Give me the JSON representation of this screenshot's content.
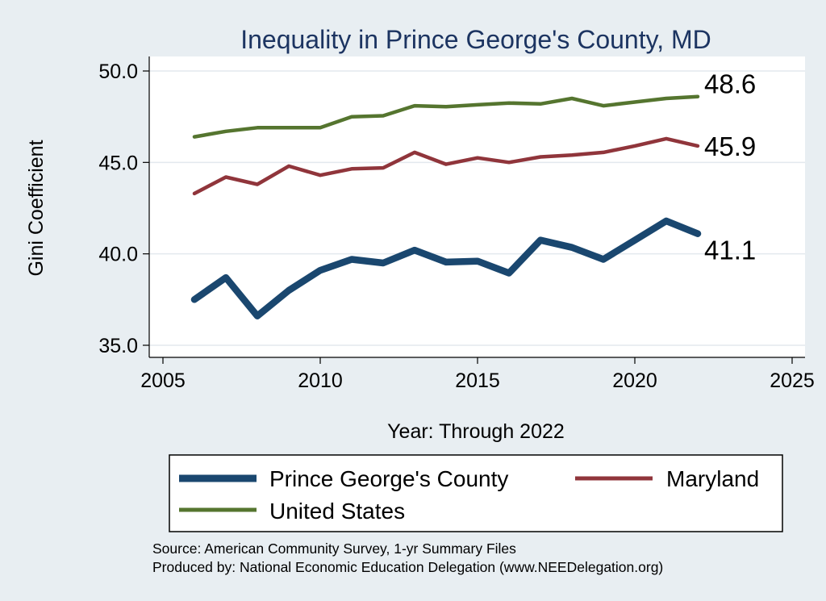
{
  "chart_data": {
    "type": "line",
    "title": "Inequality in Prince George's County, MD",
    "xlabel": "Year: Through 2022",
    "ylabel": "Gini Coefficient",
    "xlim": [
      2005,
      2025
    ],
    "ylim": [
      35,
      50
    ],
    "xticks": [
      2005,
      2010,
      2015,
      2020,
      2025
    ],
    "yticks": [
      35,
      40,
      45,
      50
    ],
    "ytick_labels": [
      "35.0",
      "40.0",
      "45.0",
      "50.0"
    ],
    "grid": true,
    "legend_position": "bottom",
    "x": [
      2006,
      2007,
      2008,
      2009,
      2010,
      2011,
      2012,
      2013,
      2014,
      2015,
      2016,
      2017,
      2018,
      2019,
      2020,
      2021,
      2022
    ],
    "series": [
      {
        "name": "Prince George's County",
        "color": "#1a476f",
        "values": [
          37.5,
          38.7,
          36.6,
          38.0,
          39.1,
          39.7,
          39.5,
          40.2,
          39.55,
          39.6,
          38.95,
          40.75,
          40.35,
          39.7,
          40.75,
          41.8,
          41.1
        ],
        "end_label": "41.1"
      },
      {
        "name": "Maryland",
        "color": "#90353b",
        "values": [
          43.3,
          44.2,
          43.8,
          44.8,
          44.3,
          44.65,
          44.7,
          45.55,
          44.9,
          45.25,
          45.0,
          45.3,
          45.4,
          45.55,
          45.9,
          46.3,
          45.9
        ],
        "end_label": "45.9"
      },
      {
        "name": "United States",
        "color": "#55752f",
        "values": [
          46.4,
          46.7,
          46.9,
          46.9,
          46.9,
          47.5,
          47.55,
          48.1,
          48.05,
          48.15,
          48.25,
          48.2,
          48.5,
          48.1,
          48.3,
          48.5,
          48.6
        ],
        "end_label": "48.6"
      }
    ]
  },
  "notes": {
    "source": "Source: American Community Survey, 1-yr Summary Files",
    "produced_by": "Produced by: National Economic Education Delegation (www.NEEDelegation.org)"
  }
}
